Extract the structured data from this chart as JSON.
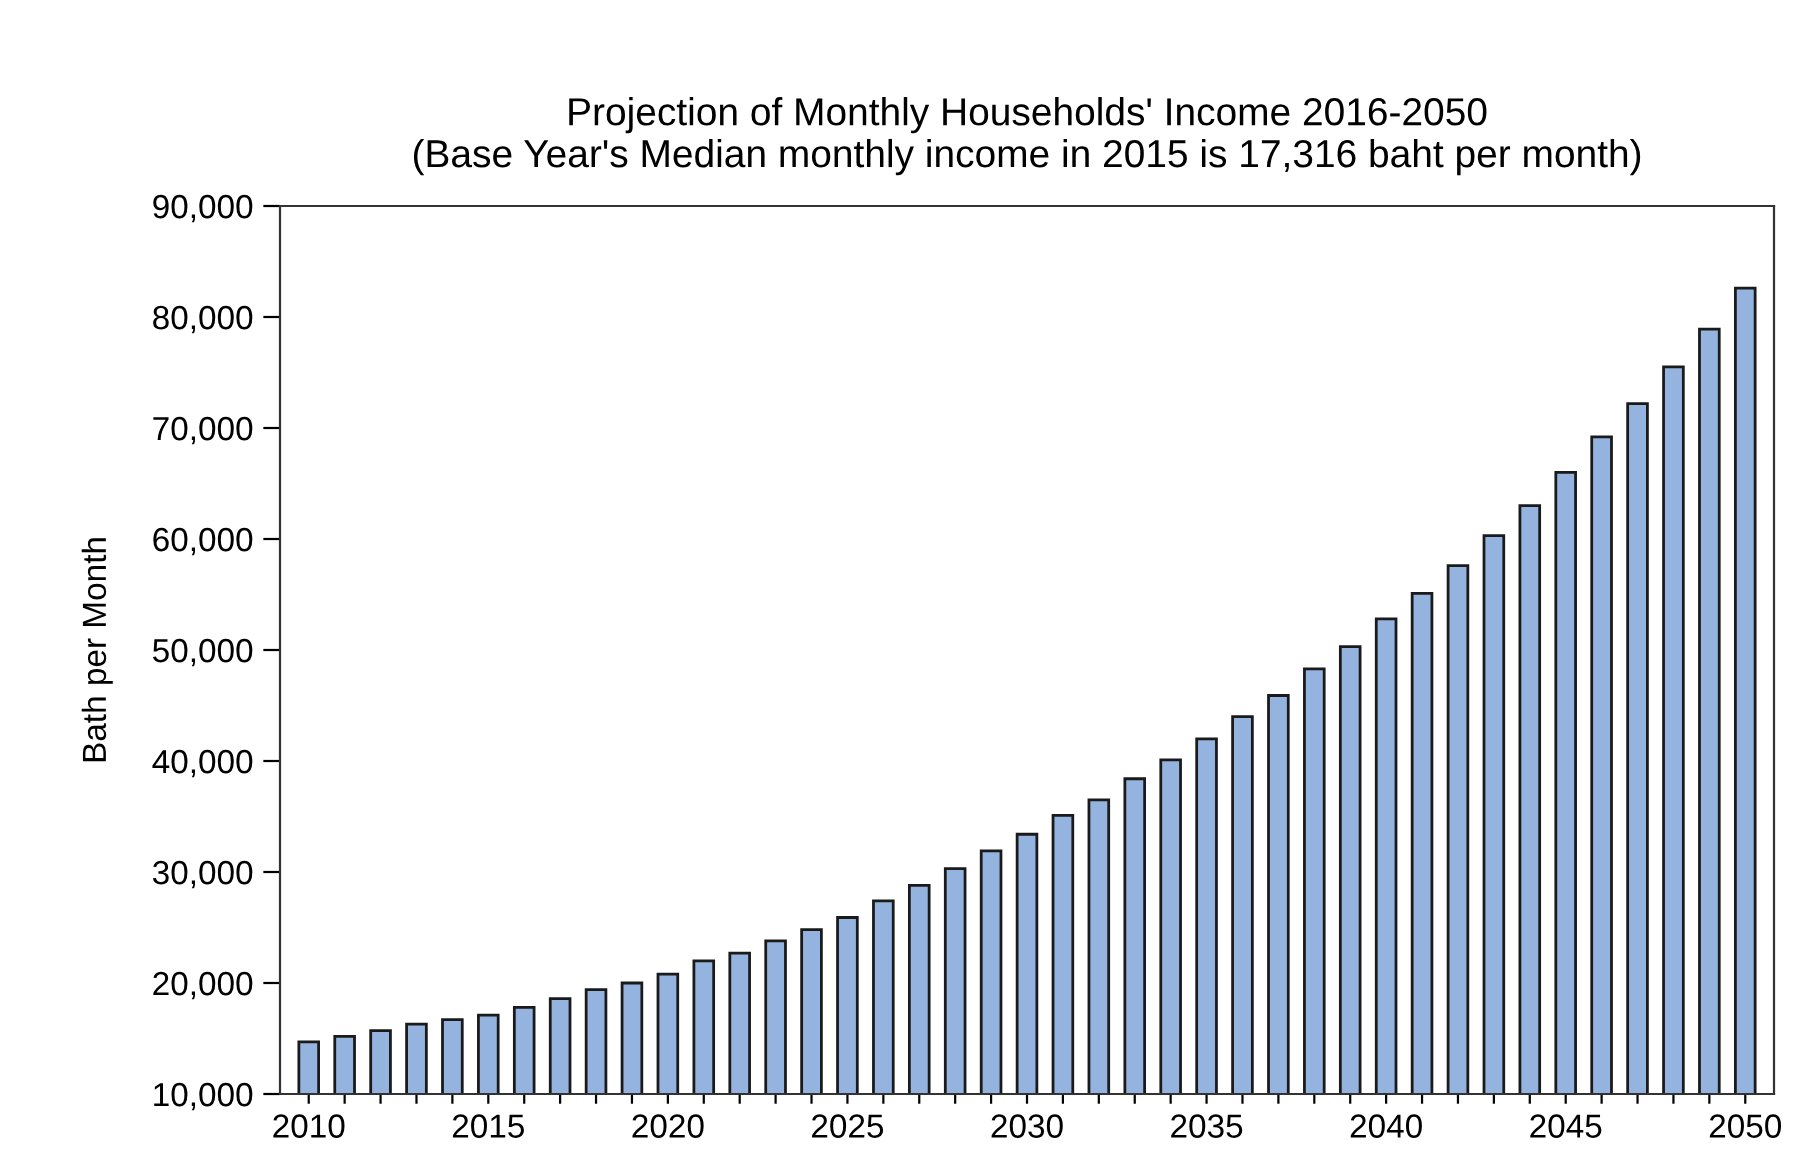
{
  "chart_data": {
    "type": "bar",
    "title": "Projection of Monthly Households' Income 2016-2050\n(Base Year's Median monthly income in 2015 is 17,316 baht per month)",
    "ylabel": "Bath per Month",
    "x": [
      2010,
      2011,
      2012,
      2013,
      2014,
      2015,
      2016,
      2017,
      2018,
      2019,
      2020,
      2021,
      2022,
      2023,
      2024,
      2025,
      2026,
      2027,
      2028,
      2029,
      2030,
      2031,
      2032,
      2033,
      2034,
      2035,
      2036,
      2037,
      2038,
      2039,
      2040,
      2041,
      2042,
      2043,
      2044,
      2045,
      2046,
      2047,
      2048,
      2049,
      2050
    ],
    "series": [
      {
        "color": "#95b3df",
        "values": [
          14700,
          15200,
          15700,
          16300,
          16700,
          17100,
          17800,
          18600,
          19400,
          20000,
          20800,
          22000,
          22700,
          23800,
          24800,
          25900,
          27400,
          28800,
          30300,
          31900,
          33400,
          35100,
          36500,
          38400,
          40100,
          42000,
          44000,
          45900,
          48300,
          50300,
          52800,
          55100,
          57600,
          60300,
          63000,
          66000,
          69200,
          72200,
          75500,
          78900,
          82600
        ]
      }
    ],
    "xlim": [
      2009.2,
      2050.8
    ],
    "xticks": [
      {
        "value": 2010,
        "label": "2010"
      },
      {
        "value": 2011,
        "label": null
      },
      {
        "value": 2012,
        "label": null
      },
      {
        "value": 2013,
        "label": null
      },
      {
        "value": 2014,
        "label": null
      },
      {
        "value": 2015,
        "label": "2015"
      },
      {
        "value": 2016,
        "label": null
      },
      {
        "value": 2017,
        "label": null
      },
      {
        "value": 2018,
        "label": null
      },
      {
        "value": 2019,
        "label": null
      },
      {
        "value": 2020,
        "label": "2020"
      },
      {
        "value": 2021,
        "label": null
      },
      {
        "value": 2022,
        "label": null
      },
      {
        "value": 2023,
        "label": null
      },
      {
        "value": 2024,
        "label": null
      },
      {
        "value": 2025,
        "label": "2025"
      },
      {
        "value": 2026,
        "label": null
      },
      {
        "value": 2027,
        "label": null
      },
      {
        "value": 2028,
        "label": null
      },
      {
        "value": 2029,
        "label": null
      },
      {
        "value": 2030,
        "label": "2030"
      },
      {
        "value": 2031,
        "label": null
      },
      {
        "value": 2032,
        "label": null
      },
      {
        "value": 2033,
        "label": null
      },
      {
        "value": 2034,
        "label": null
      },
      {
        "value": 2035,
        "label": "2035"
      },
      {
        "value": 2036,
        "label": null
      },
      {
        "value": 2037,
        "label": null
      },
      {
        "value": 2038,
        "label": null
      },
      {
        "value": 2039,
        "label": null
      },
      {
        "value": 2040,
        "label": "2040"
      },
      {
        "value": 2041,
        "label": null
      },
      {
        "value": 2042,
        "label": null
      },
      {
        "value": 2043,
        "label": null
      },
      {
        "value": 2044,
        "label": null
      },
      {
        "value": 2045,
        "label": "2045"
      },
      {
        "value": 2046,
        "label": null
      },
      {
        "value": 2047,
        "label": null
      },
      {
        "value": 2048,
        "label": null
      },
      {
        "value": 2049,
        "label": null
      },
      {
        "value": 2050,
        "label": "2050"
      }
    ],
    "ylim": [
      10000,
      90000
    ],
    "yticks": [
      {
        "value": 10000,
        "label": "10,000"
      },
      {
        "value": 20000,
        "label": "20,000"
      },
      {
        "value": 30000,
        "label": "30,000"
      },
      {
        "value": 40000,
        "label": "40,000"
      },
      {
        "value": 50000,
        "label": "50,000"
      },
      {
        "value": 60000,
        "label": "60,000"
      },
      {
        "value": 70000,
        "label": "70,000"
      },
      {
        "value": 80000,
        "label": "80,000"
      },
      {
        "value": 90000,
        "label": "90,000"
      }
    ],
    "grid": false,
    "legend": false
  }
}
